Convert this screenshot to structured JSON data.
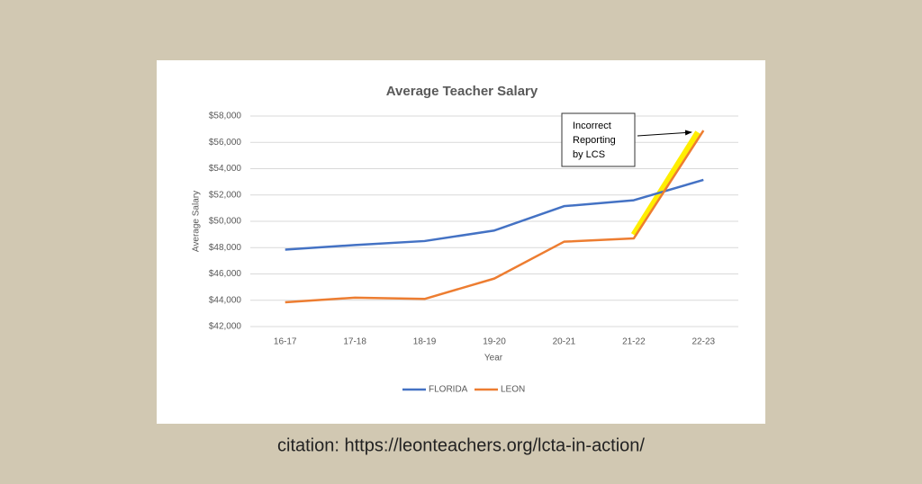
{
  "chart_data": {
    "type": "line",
    "title": "Average Teacher Salary",
    "x_label": "Year",
    "y_label": "Average Salary",
    "categories": [
      "16-17",
      "17-18",
      "18-19",
      "19-20",
      "20-21",
      "21-22",
      "22-23"
    ],
    "series": [
      {
        "name": "FLORIDA",
        "color": "#4472c4",
        "values": [
          47850,
          48200,
          48500,
          49300,
          51150,
          51600,
          53150
        ]
      },
      {
        "name": "LEON",
        "color": "#ed7d31",
        "values": [
          43850,
          44200,
          44100,
          45650,
          48450,
          48700,
          56900
        ]
      }
    ],
    "ylim": [
      42000,
      58000
    ],
    "yticks": [
      {
        "value": 42000,
        "label": "$42,000"
      },
      {
        "value": 44000,
        "label": "$44,000"
      },
      {
        "value": 46000,
        "label": "$46,000"
      },
      {
        "value": 48000,
        "label": "$48,000"
      },
      {
        "value": 50000,
        "label": "$50,000"
      },
      {
        "value": 52000,
        "label": "$52,000"
      },
      {
        "value": 54000,
        "label": "$54,000"
      },
      {
        "value": 56000,
        "label": "$56,000"
      },
      {
        "value": 58000,
        "label": "$58,000"
      }
    ],
    "grid": true,
    "legend": "bottom",
    "annotation": [
      "Incorrect",
      "Reporting",
      "by LCS"
    ]
  },
  "citation": "citation: https://leonteachers.org/lcta-in-action/"
}
